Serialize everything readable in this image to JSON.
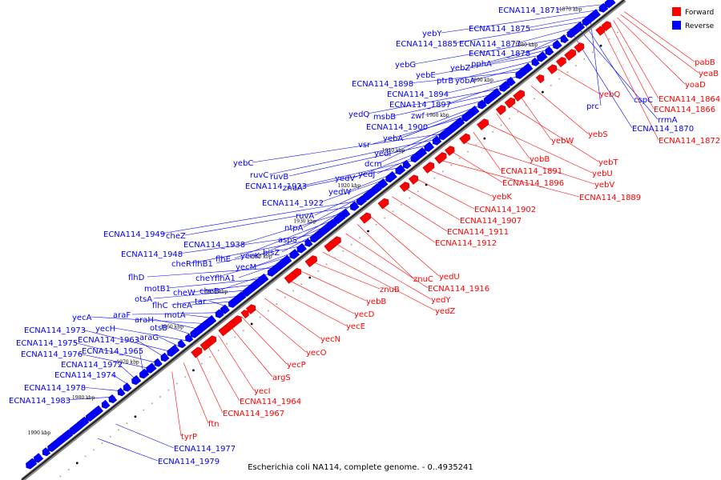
{
  "caption": "Escherichia coli NA114, complete genome. - 0..4935241",
  "legend": [
    {
      "label": "Forward",
      "color": "#ff0000"
    },
    {
      "label": "Reverse",
      "color": "#0000ff"
    }
  ],
  "ticks": [
    "1870 kbp",
    "1880 kbp",
    "1890 kbp",
    "1900 kbp",
    "1910 kbp",
    "1920 kbp",
    "1930 kbp",
    "1940 kbp",
    "1950 kbp",
    "1960 kbp",
    "1970 kbp",
    "1980 kbp",
    "1990 kbp"
  ],
  "reverse_labels": [
    "ECNA114_1871",
    "yebY",
    "ECNA114_1875",
    "ECNA114_1885",
    "ECNA114_1877",
    "ECNA114_1878",
    "yebG",
    "yebZ",
    "pphA",
    "yebE",
    "ptrB",
    "yobA",
    "ECNA114_1898",
    "ECNA114_1894",
    "ECNA114_1897",
    "yedQ",
    "msbB",
    "zwf",
    "ECNA114_1900",
    "yebA",
    "vsr",
    "yedI",
    "dcm",
    "yebC",
    "ruvC",
    "ruvB",
    "yedV",
    "yedJ",
    "ECNA114_1923",
    "znuA",
    "yedW",
    "ECNA114_1922",
    "ruvA",
    "ntpA",
    "aspS",
    "ECNA114_1949",
    "cheZ",
    "ECNA114_1938",
    "flhE",
    "yecK",
    "bisZ",
    "ECNA114_1948",
    "cheR",
    "flhB1",
    "yecM",
    "cheY",
    "flhA1",
    "flhD",
    "cheB",
    "motB1",
    "cheW",
    "otsA",
    "flhC",
    "cheA",
    "tar",
    "araF",
    "motA",
    "yecA",
    "araH",
    "otsB",
    "yecH",
    "araG",
    "ECNA114_1973",
    "ECNA114_1963",
    "ECNA114_1975",
    "ECNA114_1976",
    "ECNA114_1965",
    "ECNA114_1972",
    "ECNA114_1974",
    "ECNA114_1978",
    "ECNA114_1983",
    "prc",
    "cspC",
    "rrmA",
    "ECNA114_1870",
    "ECNA114_1977",
    "ECNA114_1979"
  ],
  "forward_labels": [
    "pabB",
    "yeaB",
    "yoaD",
    "ECNA114_1864",
    "ECNA114_1866",
    "yebQ",
    "ECNA114_1872",
    "yebS",
    "yebW",
    "yebT",
    "yobB",
    "yebU",
    "ECNA114_1891",
    "yebV",
    "ECNA114_1896",
    "ECNA114_1889",
    "yebK",
    "ECNA114_1902",
    "ECNA114_1907",
    "ECNA114_1911",
    "ECNA114_1912",
    "yedU",
    "znuC",
    "ECNA114_1916",
    "yedY",
    "yedZ",
    "znuB",
    "yebB",
    "yecD",
    "yecE",
    "yecN",
    "yecO",
    "yecP",
    "argS",
    "yecI",
    "ECNA114_1964",
    "ECNA114_1967",
    "ftn",
    "tyrP"
  ]
}
